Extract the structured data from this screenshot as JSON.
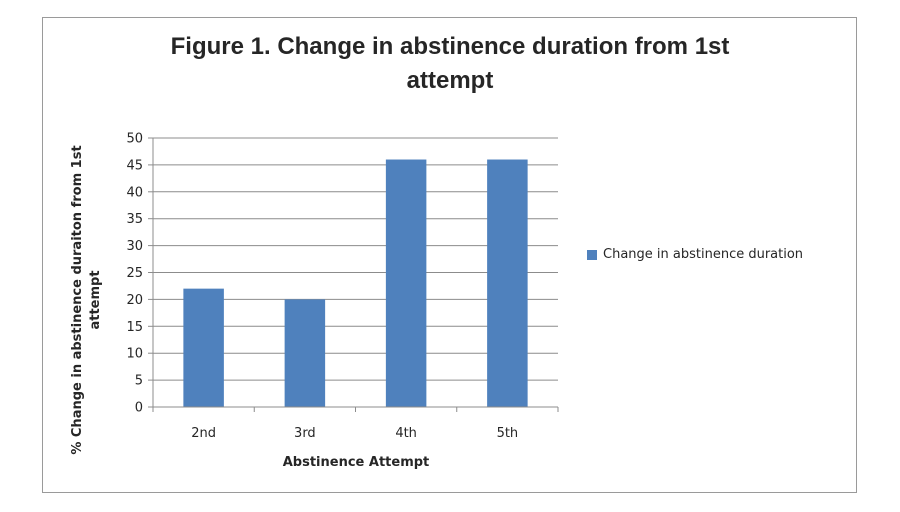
{
  "chart_data": {
    "type": "bar",
    "title_line1": "Figure 1. Change in abstinence duration from 1st",
    "title_line2": "attempt",
    "categories": [
      "2nd",
      "3rd",
      "4th",
      "5th"
    ],
    "series": [
      {
        "name": "Change in abstinence duration",
        "values": [
          22,
          20,
          46,
          46
        ],
        "color": "#4f81bd"
      }
    ],
    "xlabel": "Abstinence Attempt",
    "ylabel_line1": "% Change in abstinence duraiton from 1st",
    "ylabel_line2": "attempt",
    "ylim": [
      0,
      50
    ],
    "yticks": [
      0,
      5,
      10,
      15,
      20,
      25,
      30,
      35,
      40,
      45,
      50
    ],
    "grid": true,
    "legend_position": "right"
  }
}
